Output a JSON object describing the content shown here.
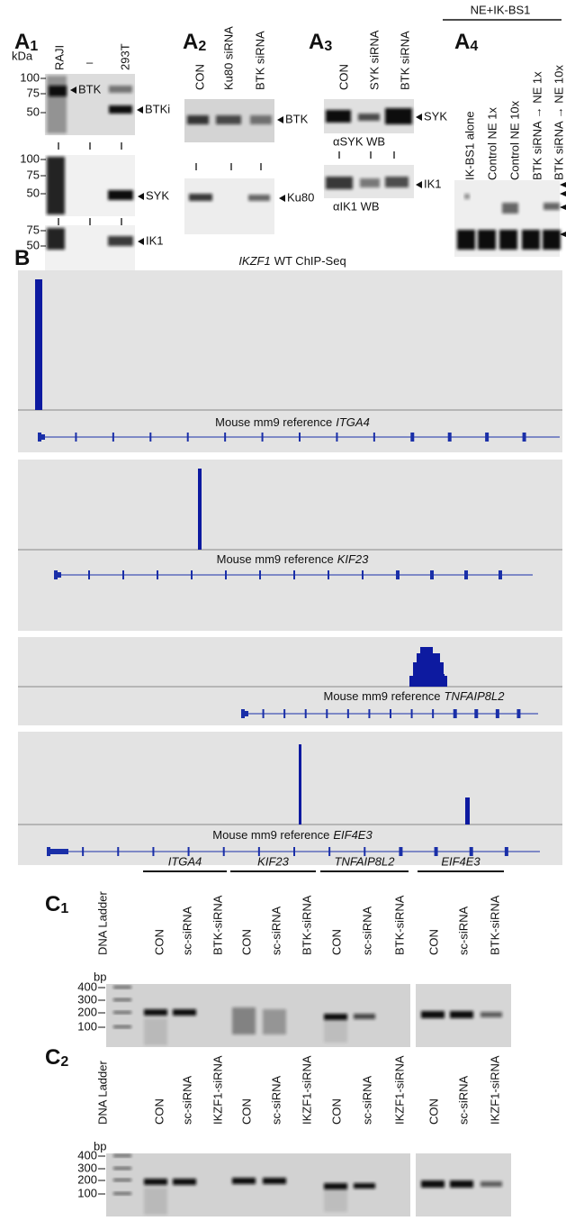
{
  "a1": {
    "letter": "A",
    "index": "1",
    "unit": "kDa",
    "lanes": [
      "RAJI",
      "–",
      "293T"
    ],
    "blots": [
      {
        "markers": [
          "100",
          "75",
          "50"
        ],
        "labels": [
          "BTK",
          "BTKi"
        ]
      },
      {
        "markers": [
          "100",
          "75",
          "50"
        ],
        "labels": [
          "SYK"
        ]
      },
      {
        "markers": [
          "75",
          "50"
        ],
        "labels": [
          "IK1"
        ]
      }
    ]
  },
  "a2": {
    "letter": "A",
    "index": "2",
    "lanes": [
      "CON",
      "Ku80 siRNA",
      "BTK siRNA"
    ],
    "blots": [
      {
        "labels": [
          "BTK"
        ]
      },
      {
        "labels": [
          "Ku80"
        ]
      }
    ]
  },
  "a3": {
    "letter": "A",
    "index": "3",
    "lanes": [
      "CON",
      "SYK siRNA",
      "BTK siRNA"
    ],
    "blots": [
      {
        "labels": [
          "SYK"
        ],
        "caption": "αSYK WB"
      },
      {
        "labels": [
          "IK1"
        ],
        "caption": "αIK1 WB"
      }
    ]
  },
  "a4": {
    "letter": "A",
    "index": "4",
    "header": "NE+IK-BS1",
    "lanes": [
      "IK-BS1 alone",
      "Control NE 1x",
      "Control NE 10x",
      "BTK siRNA → NE 1x",
      "BTK siRNA → NE 10x"
    ]
  },
  "b": {
    "letter": "B",
    "title_gene": "IKZF1",
    "title_rest": "WT ChIP-Seq",
    "tracks": [
      {
        "prefix": "Mouse mm9 reference",
        "gene": "ITGA4"
      },
      {
        "prefix": "Mouse mm9 reference",
        "gene": "KIF23"
      },
      {
        "prefix": "Mouse mm9 reference",
        "gene": "TNFAIP8L2"
      },
      {
        "prefix": "Mouse mm9 reference",
        "gene": "EIF4E3"
      }
    ]
  },
  "c": [
    {
      "letter": "C",
      "index": "1",
      "ladder": "DNA Ladder",
      "unit": "bp",
      "markers": [
        "400",
        "300",
        "200",
        "100"
      ],
      "groups": [
        {
          "gene": "ITGA4",
          "lanes": [
            "CON",
            "sc-siRNA",
            "BTK-siRNA"
          ]
        },
        {
          "gene": "KIF23",
          "lanes": [
            "CON",
            "sc-siRNA",
            "BTK-siRNA"
          ]
        },
        {
          "gene": "TNFAIP8L2",
          "lanes": [
            "CON",
            "sc-siRNA",
            "BTK-siRNA"
          ]
        },
        {
          "gene": "EIF4E3",
          "lanes": [
            "CON",
            "sc-siRNA",
            "BTK-siRNA"
          ]
        }
      ]
    },
    {
      "letter": "C",
      "index": "2",
      "ladder": "DNA Ladder",
      "unit": "bp",
      "markers": [
        "400",
        "300",
        "200",
        "100"
      ],
      "groups": [
        {
          "lanes": [
            "CON",
            "sc-siRNA",
            "IKZF1-siRNA"
          ]
        },
        {
          "lanes": [
            "CON",
            "sc-siRNA",
            "IKZF1-siRNA"
          ]
        },
        {
          "lanes": [
            "CON",
            "sc-siRNA",
            "IKZF1-siRNA"
          ]
        },
        {
          "lanes": [
            "CON",
            "sc-siRNA",
            "IKZF1-siRNA"
          ]
        }
      ]
    }
  ]
}
